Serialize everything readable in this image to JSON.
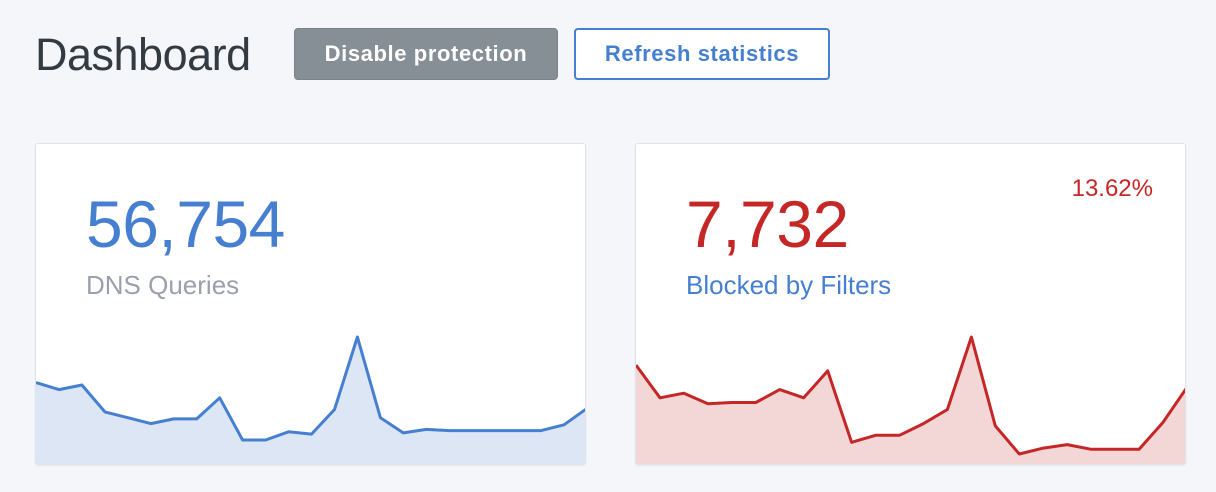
{
  "header": {
    "title": "Dashboard",
    "disable_label": "Disable protection",
    "refresh_label": "Refresh statistics"
  },
  "cards": [
    {
      "value": "56,754",
      "label": "DNS Queries",
      "value_color": "#467fcf",
      "label_color": "#9aa0ac",
      "line_color": "#467fcf",
      "fill_color": "#dde6f5"
    },
    {
      "value": "7,732",
      "label": "Blocked by Filters",
      "percent": "13.62%",
      "value_color": "#c42726",
      "label_color": "#467fcf",
      "line_color": "#c42726",
      "fill_color": "#f3d6d6"
    }
  ],
  "chart_data": [
    {
      "type": "area",
      "series": [
        {
          "values": [
            0.61,
            0.55,
            0.59,
            0.36,
            0.31,
            0.26,
            0.3,
            0.3,
            0.48,
            0.12,
            0.12,
            0.19,
            0.17,
            0.38,
            1.0,
            0.31,
            0.18,
            0.21,
            0.2,
            0.2,
            0.2,
            0.2,
            0.2,
            0.25,
            0.39
          ]
        }
      ]
    },
    {
      "type": "area",
      "series": [
        {
          "values": [
            0.76,
            0.48,
            0.52,
            0.43,
            0.44,
            0.44,
            0.55,
            0.48,
            0.71,
            0.1,
            0.16,
            0.16,
            0.26,
            0.38,
            1.0,
            0.24,
            0.0,
            0.05,
            0.08,
            0.04,
            0.04,
            0.04,
            0.27,
            0.57
          ]
        }
      ]
    }
  ]
}
